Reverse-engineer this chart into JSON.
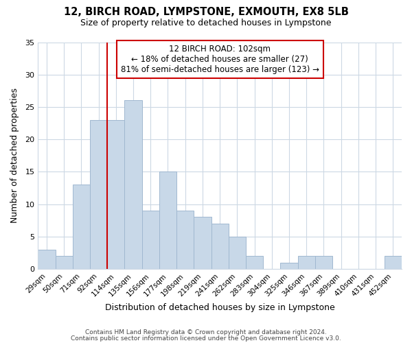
{
  "title_line1": "12, BIRCH ROAD, LYMPSTONE, EXMOUTH, EX8 5LB",
  "title_line2": "Size of property relative to detached houses in Lympstone",
  "xlabel": "Distribution of detached houses by size in Lympstone",
  "ylabel": "Number of detached properties",
  "categories": [
    "29sqm",
    "50sqm",
    "71sqm",
    "92sqm",
    "114sqm",
    "135sqm",
    "156sqm",
    "177sqm",
    "198sqm",
    "219sqm",
    "241sqm",
    "262sqm",
    "283sqm",
    "304sqm",
    "325sqm",
    "346sqm",
    "367sqm",
    "389sqm",
    "410sqm",
    "431sqm",
    "452sqm"
  ],
  "values": [
    3,
    2,
    13,
    23,
    23,
    26,
    9,
    15,
    9,
    8,
    7,
    5,
    2,
    0,
    1,
    2,
    2,
    0,
    0,
    0,
    2
  ],
  "bar_color": "#c8d8e8",
  "bar_edge_color": "#a0b8d0",
  "vline_x_index": 4,
  "vline_color": "#cc0000",
  "annotation_title": "12 BIRCH ROAD: 102sqm",
  "annotation_line1": "← 18% of detached houses are smaller (27)",
  "annotation_line2": "81% of semi-detached houses are larger (123) →",
  "annotation_box_color": "#ffffff",
  "annotation_box_edge": "#cc0000",
  "ylim": [
    0,
    35
  ],
  "yticks": [
    0,
    5,
    10,
    15,
    20,
    25,
    30,
    35
  ],
  "footer1": "Contains HM Land Registry data © Crown copyright and database right 2024.",
  "footer2": "Contains public sector information licensed under the Open Government Licence v3.0.",
  "background_color": "#ffffff",
  "grid_color": "#ccd8e4"
}
